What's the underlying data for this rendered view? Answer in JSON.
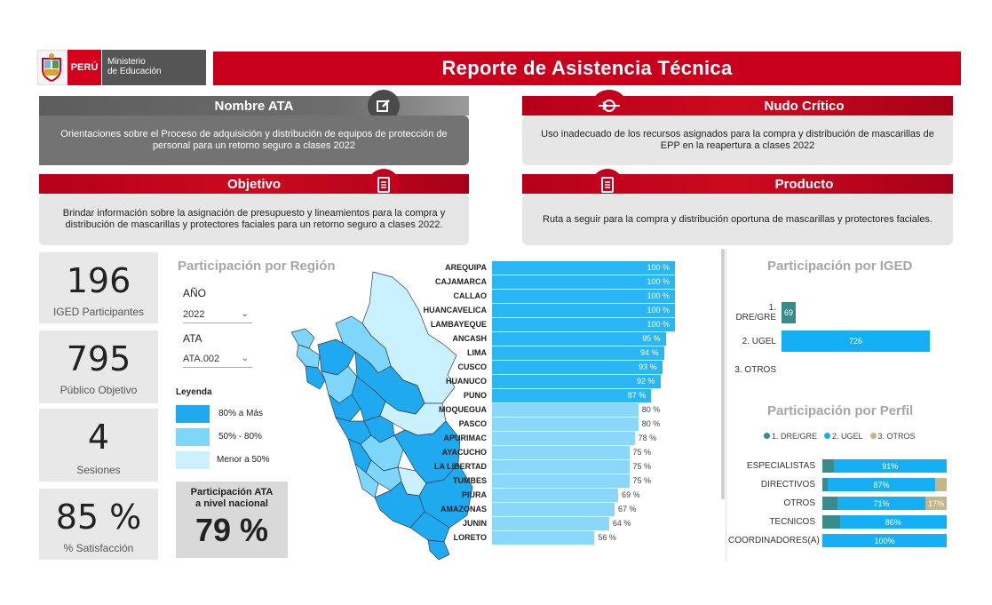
{
  "header": {
    "country": "PERÚ",
    "ministry_line1": "Ministerio",
    "ministry_line2": "de Educación",
    "title": "Reporte de Asistencia Técnica"
  },
  "cards": {
    "nombre_ata": {
      "title": "Nombre ATA",
      "text": "Orientaciones sobre el Proceso de adquisición y distribución de equipos de protección de personal para un retorno seguro a clases 2022",
      "icon": "edit-icon"
    },
    "nudo_critico": {
      "title": "Nudo Crítico",
      "text": "Uso inadecuado de los recursos asignados para la compra y distribución de mascarillas de EPP en la reapertura a clases 2022",
      "icon": "alert-icon"
    },
    "objetivo": {
      "title": "Objetivo",
      "text": "Brindar información sobre la asignación de presupuesto y lineamientos para la compra y distribución de mascarillas y protectores faciales para un retorno seguro a clases 2022.",
      "icon": "document-icon"
    },
    "producto": {
      "title": "Producto",
      "text": "Ruta a seguir para la compra  y distribución oportuna de mascarillas y protectores faciales.",
      "icon": "document-icon"
    }
  },
  "kpis": [
    {
      "value": "196",
      "label": "IGED Participantes"
    },
    {
      "value": "795",
      "label": "Público Objetivo"
    },
    {
      "value": "4",
      "label": "Sesiones"
    },
    {
      "value": "85 %",
      "label": "% Satisfacción"
    }
  ],
  "region_section": {
    "title": "Participación por Región",
    "filters": {
      "year_label": "AÑO",
      "year_value": "2022",
      "ata_label": "ATA",
      "ata_value": "ATA.002"
    },
    "legend": {
      "title": "Leyenda",
      "items": [
        {
          "label": "80% a Más",
          "color": "#1fa9ee"
        },
        {
          "label": "50% - 80%",
          "color": "#7fd6fb"
        },
        {
          "label": "Menor a 50%",
          "color": "#c9f1ff"
        }
      ]
    },
    "national": {
      "label": "Participación ATA a nivel nacional",
      "value": "79 %"
    }
  },
  "colors": {
    "high": "#2ab6f5",
    "mid": "#8bd7fb",
    "brand_red": "#c8001c"
  },
  "chart_data": [
    {
      "type": "bar",
      "orientation": "horizontal",
      "categories": [
        "AREQUIPA",
        "CAJAMARCA",
        "CALLAO",
        "HUANCAVELICA",
        "LAMBAYEQUE",
        "ANCASH",
        "LIMA",
        "CUSCO",
        "HUANUCO",
        "PUNO",
        "MOQUEGUA",
        "PASCO",
        "APURIMAC",
        "AYACUCHO",
        "LA LIBERTAD",
        "TUMBES",
        "PIURA",
        "AMAZONAS",
        "JUNIN",
        "LORETO"
      ],
      "values": [
        100,
        100,
        100,
        100,
        100,
        95,
        94,
        93,
        92,
        87,
        80,
        80,
        78,
        75,
        75,
        75,
        69,
        67,
        64,
        56
      ],
      "labels": [
        "100 %",
        "100 %",
        "100 %",
        "100 %",
        "100 %",
        "95 %",
        "94 %",
        "93 %",
        "92 %",
        "87 %",
        "80 %",
        "80 %",
        "78 %",
        "75 %",
        "75 %",
        "75 %",
        "69 %",
        "67 %",
        "64 %",
        "56 %"
      ],
      "xlim": [
        0,
        100
      ]
    },
    {
      "type": "bar",
      "orientation": "horizontal",
      "title": "Participación por IGED",
      "categories": [
        "1. DRE/GRE",
        "2. UGEL",
        "3. OTROS"
      ],
      "values": [
        69,
        726,
        0
      ],
      "labels": [
        "69",
        "726",
        ""
      ]
    },
    {
      "type": "bar",
      "stacked": true,
      "orientation": "horizontal",
      "title": "Participación por Perfil",
      "legend": [
        "1. DRE/GRE",
        "2. UGEL",
        "3. OTROS"
      ],
      "legend_colors": [
        "#3a8c8c",
        "#14aff5",
        "#c6b48a"
      ],
      "categories": [
        "ESPECIALISTAS",
        "DIRECTIVOS",
        "OTROS",
        "TECNICOS",
        "COORDINADORES(A)"
      ],
      "series": [
        {
          "name": "1. DRE/GRE",
          "values": [
            9,
            4,
            12,
            14,
            0
          ]
        },
        {
          "name": "2. UGEL",
          "values": [
            91,
            87,
            71,
            86,
            100
          ]
        },
        {
          "name": "3. OTROS",
          "values": [
            0,
            9,
            17,
            0,
            0
          ]
        }
      ],
      "labels": [
        [
          "",
          "91%",
          ""
        ],
        [
          "",
          "87%",
          ""
        ],
        [
          "",
          "71%",
          "17%"
        ],
        [
          "",
          "86%",
          ""
        ],
        [
          "",
          "100%",
          ""
        ]
      ]
    }
  ]
}
